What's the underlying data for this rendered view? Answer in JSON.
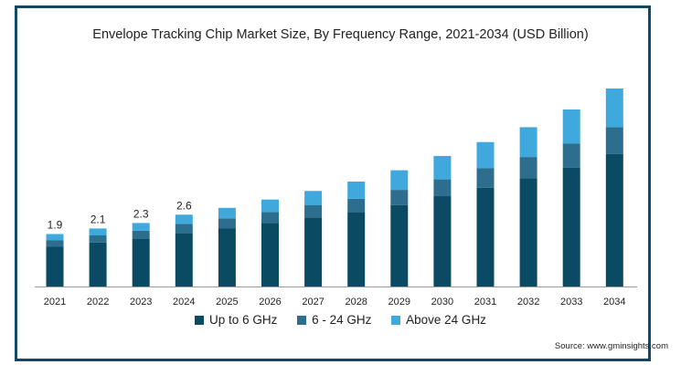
{
  "chart_data": {
    "type": "bar",
    "stacked": true,
    "title": "Envelope Tracking Chip Market Size, By Frequency Range, 2021-2034 (USD Billion)",
    "categories": [
      "2021",
      "2022",
      "2023",
      "2024",
      "2025",
      "2026",
      "2027",
      "2028",
      "2029",
      "2030",
      "2031",
      "2032",
      "2033",
      "2034"
    ],
    "series": [
      {
        "name": "Up to 6 GHz",
        "color": "#0b4a63",
        "values": [
          1.45,
          1.59,
          1.73,
          1.94,
          2.1,
          2.3,
          2.5,
          2.7,
          2.95,
          3.27,
          3.58,
          3.92,
          4.32,
          4.8
        ]
      },
      {
        "name": "6 - 24 GHz",
        "color": "#2d6e8e",
        "values": [
          0.22,
          0.26,
          0.29,
          0.33,
          0.37,
          0.4,
          0.44,
          0.48,
          0.55,
          0.61,
          0.7,
          0.77,
          0.86,
          0.97
        ]
      },
      {
        "name": "Above 24 GHz",
        "color": "#3fa9dd",
        "values": [
          0.23,
          0.25,
          0.28,
          0.33,
          0.38,
          0.45,
          0.52,
          0.62,
          0.71,
          0.85,
          0.95,
          1.08,
          1.23,
          1.4
        ]
      }
    ],
    "data_labels": [
      "1.9",
      "2.1",
      "2.3",
      "2.6"
    ],
    "ylim": [
      0,
      7.6
    ],
    "grid": false,
    "legend_position": "bottom"
  },
  "source": "Source: www.gminsights.com"
}
